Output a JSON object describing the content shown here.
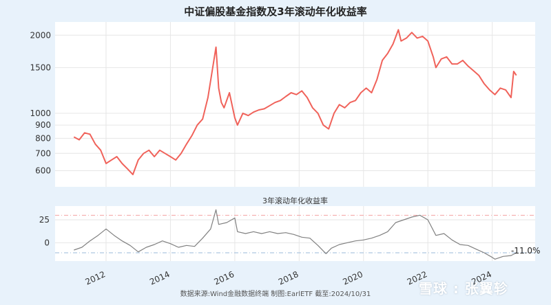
{
  "chart_data": [
    {
      "type": "line",
      "title": "中证偏股基金指数及3年滚动年化收益率",
      "y_scale": "log",
      "ylim": [
        520,
        2250
      ],
      "y_ticks": [
        600,
        700,
        800,
        900,
        1000,
        1500,
        2000
      ],
      "xlim": [
        "2010-06",
        "2025-05"
      ],
      "grid": true,
      "color": "#f0625a",
      "series": [
        {
          "x": [
            "2011-01",
            "2011-03",
            "2011-05",
            "2011-07",
            "2011-09",
            "2011-11",
            "2012-01",
            "2012-03",
            "2012-05",
            "2012-07",
            "2012-09",
            "2012-11",
            "2013-01",
            "2013-03",
            "2013-05",
            "2013-07",
            "2013-09",
            "2013-11",
            "2014-01",
            "2014-03",
            "2014-05",
            "2014-07",
            "2014-09",
            "2014-11",
            "2015-01",
            "2015-03",
            "2015-05",
            "2015-06",
            "2015-07",
            "2015-08",
            "2015-09",
            "2015-11",
            "2016-01",
            "2016-02",
            "2016-04",
            "2016-06",
            "2016-08",
            "2016-10",
            "2016-12",
            "2017-02",
            "2017-04",
            "2017-06",
            "2017-08",
            "2017-10",
            "2017-12",
            "2018-02",
            "2018-04",
            "2018-06",
            "2018-08",
            "2018-10",
            "2018-12",
            "2019-02",
            "2019-04",
            "2019-06",
            "2019-08",
            "2019-10",
            "2019-12",
            "2020-02",
            "2020-04",
            "2020-06",
            "2020-08",
            "2020-10",
            "2020-12",
            "2021-02",
            "2021-03",
            "2021-05",
            "2021-07",
            "2021-09",
            "2021-11",
            "2022-01",
            "2022-03",
            "2022-04",
            "2022-06",
            "2022-08",
            "2022-10",
            "2022-12",
            "2023-02",
            "2023-04",
            "2023-06",
            "2023-08",
            "2023-10",
            "2023-12",
            "2024-02",
            "2024-04",
            "2024-06",
            "2024-08",
            "2024-09",
            "2024-10"
          ],
          "values": [
            810,
            790,
            840,
            830,
            760,
            720,
            640,
            660,
            680,
            640,
            610,
            580,
            660,
            700,
            720,
            680,
            720,
            700,
            680,
            660,
            700,
            760,
            820,
            900,
            950,
            1150,
            1550,
            1800,
            1250,
            1100,
            1050,
            1200,
            960,
            900,
            1000,
            980,
            1010,
            1030,
            1040,
            1070,
            1100,
            1120,
            1160,
            1200,
            1180,
            1220,
            1150,
            1050,
            1000,
            900,
            870,
            1000,
            1080,
            1050,
            1100,
            1120,
            1200,
            1250,
            1200,
            1350,
            1600,
            1700,
            1850,
            2100,
            1900,
            1950,
            2050,
            1950,
            1980,
            1900,
            1650,
            1500,
            1620,
            1650,
            1550,
            1550,
            1600,
            1520,
            1460,
            1400,
            1300,
            1230,
            1180,
            1250,
            1230,
            1150,
            1450,
            1400
          ]
        }
      ]
    },
    {
      "type": "line",
      "title": "3年滚动年化收益率",
      "ylim": [
        -20,
        40
      ],
      "y_ticks": [
        0,
        25
      ],
      "x_ticks": [
        "2012",
        "2014",
        "2016",
        "2018",
        "2020",
        "2022",
        "2024"
      ],
      "xlim": [
        "2010-06",
        "2025-05"
      ],
      "grid": true,
      "color": "#808080",
      "reference_lines": [
        {
          "y": 30,
          "color": "#f4a0a0"
        },
        {
          "y": -11,
          "color": "#9ab8d8"
        }
      ],
      "last_value_label": "-11.0%",
      "series": [
        {
          "x": [
            "2011-01",
            "2011-04",
            "2011-07",
            "2011-10",
            "2012-01",
            "2012-04",
            "2012-07",
            "2012-10",
            "2013-01",
            "2013-04",
            "2013-07",
            "2013-10",
            "2014-01",
            "2014-04",
            "2014-07",
            "2014-10",
            "2015-01",
            "2015-04",
            "2015-06",
            "2015-07",
            "2015-10",
            "2016-01",
            "2016-02",
            "2016-05",
            "2016-08",
            "2016-11",
            "2017-02",
            "2017-05",
            "2017-08",
            "2017-11",
            "2018-02",
            "2018-05",
            "2018-08",
            "2018-11",
            "2019-01",
            "2019-04",
            "2019-07",
            "2019-10",
            "2020-01",
            "2020-04",
            "2020-07",
            "2020-10",
            "2021-01",
            "2021-04",
            "2021-07",
            "2021-10",
            "2022-01",
            "2022-04",
            "2022-07",
            "2022-10",
            "2023-01",
            "2023-04",
            "2023-07",
            "2023-10",
            "2024-01",
            "2024-02",
            "2024-05",
            "2024-08",
            "2024-10"
          ],
          "values": [
            -8,
            -5,
            2,
            8,
            15,
            8,
            2,
            -3,
            -10,
            -5,
            -2,
            2,
            -1,
            -5,
            -3,
            -4,
            5,
            15,
            36,
            20,
            22,
            27,
            12,
            10,
            12,
            10,
            12,
            10,
            11,
            9,
            6,
            5,
            -3,
            -12,
            -6,
            -2,
            0,
            2,
            3,
            5,
            8,
            12,
            22,
            25,
            28,
            30,
            25,
            8,
            10,
            3,
            -2,
            -3,
            -7,
            -11,
            -16,
            -18,
            -15,
            -14,
            -11
          ]
        }
      ]
    }
  ],
  "source_note": "数据来源:Wind金融数据终端  制图:EarlETF 截至:2024/10/31",
  "watermark": "雪球 : 张翼轸"
}
